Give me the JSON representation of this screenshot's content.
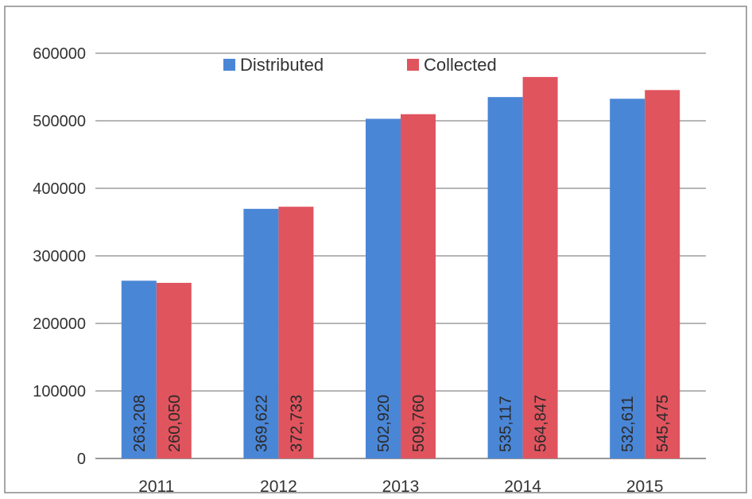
{
  "chart_data": {
    "type": "bar",
    "title": "",
    "xlabel": "",
    "ylabel": "",
    "categories": [
      "2011",
      "2012",
      "2013",
      "2014",
      "2015"
    ],
    "series": [
      {
        "name": "Distributed",
        "color": "#4a86d6",
        "values": [
          263208,
          369622,
          502920,
          535117,
          532611
        ],
        "labels": [
          "263,208",
          "369,622",
          "502,920",
          "535,117",
          "532,611"
        ]
      },
      {
        "name": "Collected",
        "color": "#e0545e",
        "values": [
          260050,
          372733,
          509760,
          564847,
          545475
        ],
        "labels": [
          "260,050",
          "372,733",
          "509,760",
          "564,847",
          "545,475"
        ]
      }
    ],
    "ylim": [
      0,
      600000
    ],
    "yticks": [
      "0",
      "100000",
      "200000",
      "300000",
      "400000",
      "500000",
      "600000"
    ],
    "grid": true,
    "legend_position": "top-center",
    "data_label_position": "inside-bottom-vertical"
  }
}
